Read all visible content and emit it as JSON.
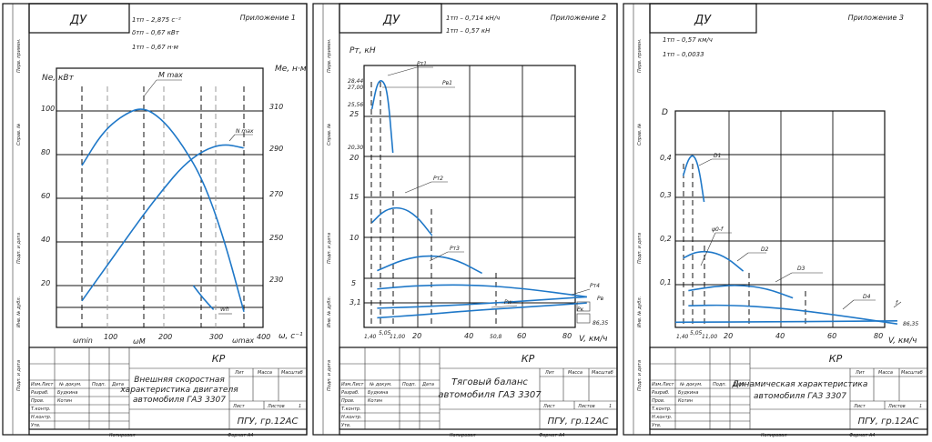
{
  "sheets": [
    {
      "stamp": "ДУ",
      "appendix": "Приложение 1",
      "params": [
        "1тп – 2,875 с⁻²",
        "δтп – 0,67 кВт",
        "1тп – 0,67 н·м"
      ],
      "title_block": {
        "code": "КР",
        "title_lines": [
          "Внешняя скоростная",
          "характеристика двигателя",
          "автомобиля ГАЗ 3307"
        ],
        "org": "ПГУ, гр.12АС",
        "col_lit": "Лит",
        "col_mass": "Масса",
        "col_scale": "Масштаб",
        "sheet_label": "Лист",
        "sheets_label": "Листов",
        "sheets_count": "1",
        "rows": [
          "Изм.Лист",
          "№ докум.",
          "Подп.",
          "Дата"
        ],
        "people": [
          "Разраб.",
          "Пров.",
          "Т.контр.",
          "Н.контр.",
          "Утв."
        ],
        "names": [
          "Будкина",
          "Котин"
        ],
        "footer_left": "Копировал",
        "footer_right": "Формат А4"
      },
      "chart_data": {
        "type": "line",
        "ylabel_left": "Ne, кВт",
        "ylabel_right": "Me, н·м",
        "xlabel": "ω, с⁻¹",
        "left_ticks": [
          "100",
          "80",
          "60",
          "40",
          "20"
        ],
        "right_ticks": [
          "310",
          "290",
          "270",
          "250",
          "230"
        ],
        "x_ticks": [
          "ωmin",
          "100",
          "ωМ",
          "200",
          "300",
          "ωmax",
          "400"
        ],
        "series": [
          {
            "name": "M max",
            "points": [
              [
                60,
                285
              ],
              [
                100,
                300
              ],
              [
                140,
                308
              ],
              [
                180,
                312
              ],
              [
                220,
                306
              ],
              [
                260,
                294
              ],
              [
                300,
                278
              ],
              [
                340,
                252
              ],
              [
                380,
                218
              ]
            ]
          },
          {
            "name": "N max",
            "points": [
              [
                60,
                13
              ],
              [
                100,
                26
              ],
              [
                140,
                39
              ],
              [
                180,
                52
              ],
              [
                220,
                64
              ],
              [
                260,
                75
              ],
              [
                300,
                82
              ],
              [
                340,
                85
              ],
              [
                380,
                83
              ]
            ]
          },
          {
            "name": "Wh",
            "points": [
              [
                280,
                20
              ],
              [
                300,
                14
              ],
              [
                320,
                9
              ]
            ]
          }
        ],
        "annotations": [
          "M max",
          "N max",
          "Wh"
        ]
      }
    },
    {
      "stamp": "ДУ",
      "appendix": "Приложение 2",
      "params": [
        "1тп – 0,714 кН/ч",
        "1тп – 0,57 кН"
      ],
      "title_block": {
        "code": "КР",
        "title_lines": [
          "Тяговый баланс",
          "автомобиля ГАЗ 3307"
        ],
        "org": "ПГУ, гр.12АС",
        "col_lit": "Лит",
        "col_mass": "Масса",
        "col_scale": "Масштаб",
        "sheet_label": "Лист",
        "sheets_label": "Листов",
        "sheets_count": "1",
        "rows": [
          "Изм.Лист",
          "№ докум.",
          "Подп.",
          "Дата"
        ],
        "people": [
          "Разраб.",
          "Пров.",
          "Т.контр.",
          "Н.контр.",
          "Утв."
        ],
        "names": [
          "Будкина",
          "Котин"
        ],
        "footer_left": "Копировал",
        "footer_right": "Формат А4"
      },
      "chart_data": {
        "type": "line",
        "ylabel": "Pт, кН",
        "xlabel": "V, км/ч",
        "y_ticks": [
          "28,44",
          "27,00",
          "25,56",
          "25",
          "20,30",
          "20",
          "15",
          "10",
          "5",
          "3,1"
        ],
        "x_ticks": [
          "1,40",
          "5,05",
          "11,00",
          "20",
          "40",
          "50,8",
          "60",
          "80"
        ],
        "series": [
          {
            "name": "Pт1",
            "points": [
              [
                3,
                25
              ],
              [
                5,
                28
              ],
              [
                7,
                28.4
              ],
              [
                9,
                27
              ],
              [
                11,
                20
              ]
            ]
          },
          {
            "name": "Pт2",
            "points": [
              [
                3,
                12
              ],
              [
                8,
                13.5
              ],
              [
                14,
                13.8
              ],
              [
                20,
                12.8
              ],
              [
                26,
                10.5
              ]
            ]
          },
          {
            "name": "Pт3",
            "points": [
              [
                5,
                6.5
              ],
              [
                15,
                7.8
              ],
              [
                25,
                8.3
              ],
              [
                35,
                7.8
              ],
              [
                45,
                6.2
              ]
            ]
          },
          {
            "name": "Pт4",
            "points": [
              [
                5,
                4.4
              ],
              [
                20,
                4.8
              ],
              [
                40,
                4.9
              ],
              [
                60,
                4.5
              ],
              [
                85,
                3.5
              ]
            ]
          },
          {
            "name": "Pw",
            "points": [
              [
                5,
                2.2
              ],
              [
                25,
                2.4
              ],
              [
                50,
                2.8
              ],
              [
                70,
                3.2
              ],
              [
                85,
                3.5
              ]
            ]
          },
          {
            "name": "Pк",
            "points": [
              [
                5,
                1.1
              ],
              [
                20,
                1.4
              ],
              [
                40,
                1.9
              ],
              [
                60,
                2.3
              ],
              [
                85,
                2.8
              ]
            ]
          }
        ],
        "annotations": [
          "Pт1",
          "Pв1",
          "Pт2",
          "Pт3",
          "Pт4",
          "Pw",
          "Pв",
          "Pк",
          "86,35"
        ]
      }
    },
    {
      "stamp": "ДУ",
      "appendix": "Приложение 3",
      "params": [
        "1тп – 0,57 км/ч",
        "1тп – 0,0033"
      ],
      "title_block": {
        "code": "КР",
        "title_lines": [
          "Динамическая характеристика",
          "автомобиля ГАЗ 3307"
        ],
        "org": "ПГУ, гр.12АС",
        "col_lit": "Лит",
        "col_mass": "Масса",
        "col_scale": "Масштаб",
        "sheet_label": "Лист",
        "sheets_label": "Листов",
        "sheets_count": "1",
        "rows": [
          "Изм.Лист",
          "№ докум.",
          "Подп.",
          "Дата"
        ],
        "people": [
          "Разраб.",
          "Пров.",
          "Т.контр.",
          "Н.контр.",
          "Утв."
        ],
        "names": [
          "Будкина",
          "Котин"
        ],
        "footer_left": "Копировал",
        "footer_right": "Формат А4"
      },
      "chart_data": {
        "type": "line",
        "ylabel": "D",
        "xlabel": "V, км/ч",
        "y_ticks": [
          "0,4",
          "0,3",
          "0,2",
          "0,1"
        ],
        "x_ticks": [
          "1,40",
          "5,05",
          "11,00",
          "20",
          "40",
          "60",
          "80"
        ],
        "series": [
          {
            "name": "D1",
            "points": [
              [
                3,
                0.35
              ],
              [
                5,
                0.39
              ],
              [
                7,
                0.4
              ],
              [
                9,
                0.37
              ],
              [
                11,
                0.29
              ]
            ]
          },
          {
            "name": "D2",
            "points": [
              [
                3,
                0.16
              ],
              [
                8,
                0.175
              ],
              [
                14,
                0.175
              ],
              [
                20,
                0.16
              ],
              [
                26,
                0.13
              ]
            ]
          },
          {
            "name": "D3",
            "points": [
              [
                5,
                0.085
              ],
              [
                15,
                0.095
              ],
              [
                25,
                0.098
              ],
              [
                35,
                0.09
              ],
              [
                45,
                0.068
              ]
            ]
          },
          {
            "name": "D4",
            "points": [
              [
                5,
                0.05
              ],
              [
                20,
                0.052
              ],
              [
                40,
                0.045
              ],
              [
                60,
                0.03
              ],
              [
                85,
                0.008
              ]
            ]
          },
          {
            "name": "f",
            "points": [
              [
                0,
                0.012
              ],
              [
                40,
                0.013
              ],
              [
                85,
                0.015
              ]
            ]
          }
        ],
        "annotations": [
          "D1",
          "ψ0-f",
          "D2",
          "D3",
          "D4",
          "f",
          "86,35"
        ]
      }
    }
  ]
}
